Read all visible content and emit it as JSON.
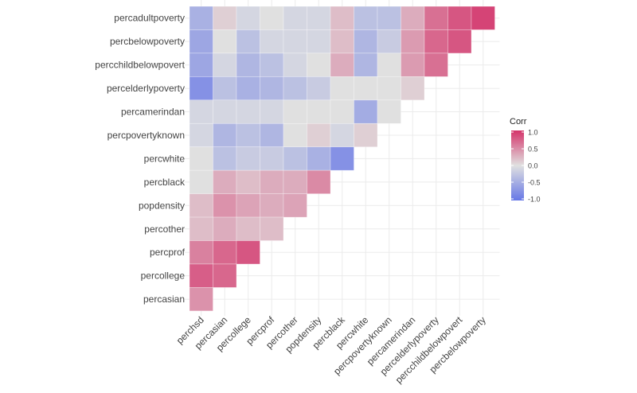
{
  "chart_data": {
    "type": "heatmap",
    "title": "",
    "xlabel": "",
    "ylabel": "",
    "grid": true,
    "legend_position": "right",
    "x_categories": [
      "perchsd",
      "percasian",
      "percollege",
      "percprof",
      "percother",
      "popdensity",
      "percblack",
      "percwhite",
      "percpovertyknown",
      "percamerindan",
      "percelderlypoverty",
      "percchildbelowpovert",
      "percbelowpoverty"
    ],
    "y_categories": [
      "percadultpoverty",
      "percbelowpoverty",
      "percchildbelowpovert",
      "percelderlypoverty",
      "percamerindan",
      "percpovertyknown",
      "percwhite",
      "percblack",
      "popdensity",
      "percother",
      "percprof",
      "percollege",
      "percasian"
    ],
    "values": [
      [
        -0.45,
        0.1,
        -0.1,
        0.0,
        -0.1,
        -0.1,
        0.2,
        -0.3,
        -0.3,
        0.3,
        0.65,
        0.8,
        0.9
      ],
      [
        -0.55,
        0.0,
        -0.3,
        -0.1,
        -0.1,
        -0.1,
        0.2,
        -0.4,
        -0.2,
        0.4,
        0.7,
        0.8
      ],
      [
        -0.55,
        -0.1,
        -0.4,
        -0.3,
        -0.1,
        0.0,
        0.3,
        -0.4,
        0.0,
        0.4,
        0.65
      ],
      [
        -0.75,
        -0.3,
        -0.45,
        -0.4,
        -0.3,
        -0.2,
        0.0,
        0.0,
        0.0,
        0.1
      ],
      [
        -0.1,
        -0.1,
        -0.1,
        -0.1,
        0.0,
        0.0,
        0.0,
        -0.5,
        0.0
      ],
      [
        -0.1,
        -0.4,
        -0.3,
        -0.4,
        0.0,
        0.1,
        -0.1,
        0.1
      ],
      [
        0.0,
        -0.3,
        -0.2,
        -0.2,
        -0.3,
        -0.45,
        -0.75
      ],
      [
        0.0,
        0.3,
        0.2,
        0.3,
        0.3,
        0.5
      ],
      [
        0.2,
        0.45,
        0.35,
        0.3,
        0.35
      ],
      [
        0.2,
        0.3,
        0.2,
        0.2
      ],
      [
        0.55,
        0.7,
        0.8
      ],
      [
        0.75,
        0.7
      ],
      [
        0.45
      ]
    ],
    "legend": {
      "title": "Corr",
      "ticks": [
        "1.0",
        "0.5",
        "0.0",
        "-0.5",
        "-1.0"
      ],
      "range": [
        -1,
        1
      ]
    },
    "colors": {
      "low": "#6677E6",
      "mid": "#E0E0E0",
      "high": "#D4336A"
    }
  }
}
